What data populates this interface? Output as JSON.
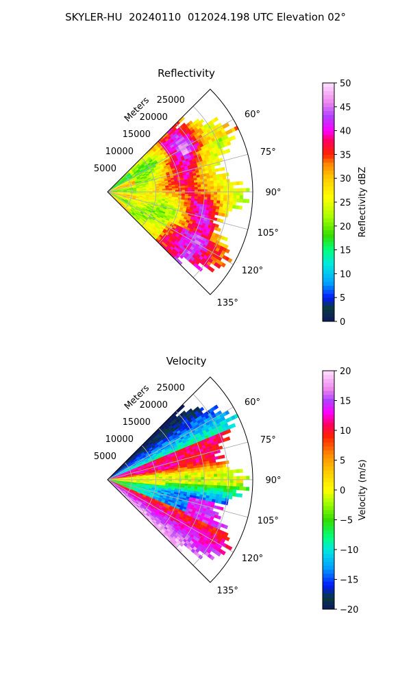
{
  "figure": {
    "suptitle": "SKYLER-HU  20240110  012024.198 UTC Elevation 02°"
  },
  "chart_data": [
    {
      "type": "heatmap",
      "subtype": "polar-sector",
      "title": "Reflectivity",
      "radial_axis_label": "Meters",
      "radial_ticks": [
        5000,
        10000,
        15000,
        20000,
        25000
      ],
      "radial_tick_labels": [
        "5000",
        "10000",
        "15000",
        "20000",
        "25000"
      ],
      "rmax": 30000,
      "angle_ticks": [
        60,
        75,
        90,
        105,
        120,
        135
      ],
      "angle_tick_labels": [
        "60°",
        "75°",
        "90°",
        "105°",
        "120°",
        "135°"
      ],
      "theta_range": [
        45,
        135
      ],
      "colorbar": {
        "label": "Reflectivity dBZ",
        "range": [
          0,
          50
        ],
        "ticks": [
          0,
          5,
          10,
          15,
          20,
          25,
          30,
          35,
          40,
          45,
          50
        ],
        "tick_labels": [
          "0",
          "5",
          "10",
          "15",
          "20",
          "25",
          "30",
          "35",
          "40",
          "45",
          "50"
        ],
        "colormap": "pyart_HomeyerRainbow-like",
        "stops": [
          {
            "v": 0,
            "c": "#0b1a5e"
          },
          {
            "v": 3,
            "c": "#0a3a40"
          },
          {
            "v": 5,
            "c": "#0018ff"
          },
          {
            "v": 8,
            "c": "#00a0ff"
          },
          {
            "v": 12,
            "c": "#00e8e0"
          },
          {
            "v": 15,
            "c": "#00ff80"
          },
          {
            "v": 18,
            "c": "#33dd00"
          },
          {
            "v": 22,
            "c": "#aaff00"
          },
          {
            "v": 26,
            "c": "#ffff00"
          },
          {
            "v": 30,
            "c": "#ffcc00"
          },
          {
            "v": 33,
            "c": "#ff8800"
          },
          {
            "v": 35,
            "c": "#ff2200"
          },
          {
            "v": 38,
            "c": "#ff0060"
          },
          {
            "v": 40,
            "c": "#ff00ff"
          },
          {
            "v": 43,
            "c": "#b040ff"
          },
          {
            "v": 46,
            "c": "#ee88ee"
          },
          {
            "v": 50,
            "c": "#ffe0ff"
          }
        ]
      },
      "field_description_values": {
        "near_range_mean": 26,
        "storm_band_peak": 40,
        "storm_band_range_m": [
          15000,
          26000
        ]
      }
    },
    {
      "type": "heatmap",
      "subtype": "polar-sector",
      "title": "Velocity",
      "radial_axis_label": "Meters",
      "radial_ticks": [
        5000,
        10000,
        15000,
        20000,
        25000
      ],
      "radial_tick_labels": [
        "5000",
        "10000",
        "15000",
        "20000",
        "25000"
      ],
      "rmax": 30000,
      "angle_ticks": [
        60,
        75,
        90,
        105,
        120,
        135
      ],
      "angle_tick_labels": [
        "60°",
        "75°",
        "90°",
        "105°",
        "120°",
        "135°"
      ],
      "theta_range": [
        45,
        135
      ],
      "colorbar": {
        "label": "Velocity (m/s)",
        "range": [
          -20,
          20
        ],
        "ticks": [
          -20,
          -15,
          -10,
          -5,
          0,
          5,
          10,
          15,
          20
        ],
        "tick_labels": [
          "−20",
          "−15",
          "−10",
          "−5",
          "0",
          "5",
          "10",
          "15",
          "20"
        ],
        "colormap": "pyart_HomeyerRainbow-like",
        "stops": [
          {
            "v": -20,
            "c": "#0b1a5e"
          },
          {
            "v": -18,
            "c": "#0a3a40"
          },
          {
            "v": -16,
            "c": "#0018ff"
          },
          {
            "v": -13,
            "c": "#00a0ff"
          },
          {
            "v": -10,
            "c": "#00e8e0"
          },
          {
            "v": -8,
            "c": "#00ff80"
          },
          {
            "v": -5,
            "c": "#33dd00"
          },
          {
            "v": -2,
            "c": "#aaff00"
          },
          {
            "v": 0,
            "c": "#ffff00"
          },
          {
            "v": 3,
            "c": "#ffcc00"
          },
          {
            "v": 6,
            "c": "#ff8800"
          },
          {
            "v": 9,
            "c": "#ff2200"
          },
          {
            "v": 11,
            "c": "#ff0060"
          },
          {
            "v": 13,
            "c": "#ff00ff"
          },
          {
            "v": 15,
            "c": "#b040ff"
          },
          {
            "v": 17,
            "c": "#ee88ee"
          },
          {
            "v": 20,
            "c": "#ffe0ff"
          }
        ]
      }
    }
  ]
}
